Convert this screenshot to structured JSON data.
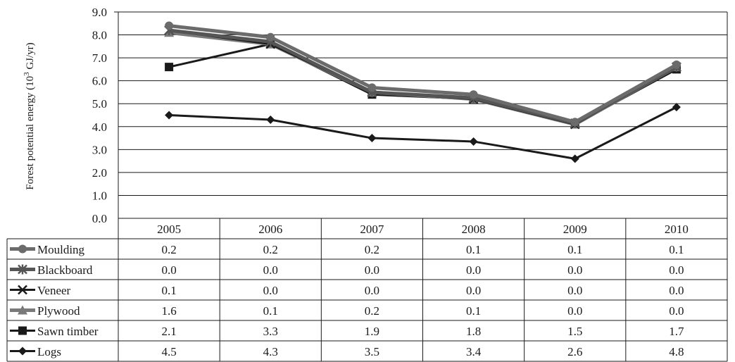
{
  "chart_data": {
    "type": "line",
    "title": "",
    "ylabel": "Forest potential energy (10",
    "ylabel_sup": "3",
    "ylabel_unit": " GJ/yr)",
    "ylim": [
      0,
      9
    ],
    "yticks": [
      "0.0",
      "1.0",
      "2.0",
      "3.0",
      "4.0",
      "5.0",
      "6.0",
      "7.0",
      "8.0",
      "9.0"
    ],
    "grid": true,
    "categories": [
      "2005",
      "2006",
      "2007",
      "2008",
      "2009",
      "2010"
    ],
    "data_table": true,
    "series": [
      {
        "name": "Moulding",
        "marker": "circle",
        "color": "#6b6b6b",
        "table_values": [
          "0.2",
          "0.2",
          "0.2",
          "0.1",
          "0.1",
          "0.1"
        ],
        "values": [
          8.4,
          7.9,
          5.7,
          5.4,
          4.2,
          6.7
        ]
      },
      {
        "name": "Blackboard",
        "marker": "asterisk",
        "color": "#555555",
        "table_values": [
          "0.0",
          "0.0",
          "0.0",
          "0.0",
          "0.0",
          "0.0"
        ],
        "values": [
          8.2,
          7.7,
          5.5,
          5.25,
          4.15,
          6.6
        ]
      },
      {
        "name": "Veneer",
        "marker": "x",
        "color": "#1a1a1a",
        "table_values": [
          "0.1",
          "0.0",
          "0.0",
          "0.0",
          "0.0",
          "0.0"
        ],
        "values": [
          8.2,
          7.6,
          5.5,
          5.2,
          4.1,
          6.6
        ]
      },
      {
        "name": "Plywood",
        "marker": "triangle",
        "color": "#7a7a7a",
        "table_values": [
          "1.6",
          "0.1",
          "0.2",
          "0.1",
          "0.0",
          "0.0"
        ],
        "values": [
          8.1,
          7.6,
          5.5,
          5.2,
          4.1,
          6.6
        ]
      },
      {
        "name": "Sawn timber",
        "marker": "square",
        "color": "#1a1a1a",
        "table_values": [
          "2.1",
          "3.3",
          "1.9",
          "1.8",
          "1.5",
          "1.7"
        ],
        "values": [
          6.6,
          7.6,
          5.4,
          5.2,
          4.1,
          6.5
        ]
      },
      {
        "name": "Logs",
        "marker": "diamond",
        "color": "#1a1a1a",
        "table_values": [
          "4.5",
          "4.3",
          "3.5",
          "3.4",
          "2.6",
          "4.8"
        ],
        "values": [
          4.5,
          4.3,
          3.5,
          3.35,
          2.6,
          4.85
        ]
      }
    ]
  }
}
